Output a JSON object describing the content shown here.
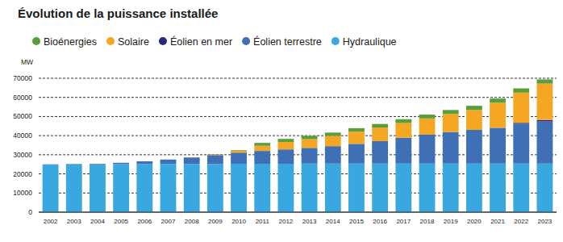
{
  "chart_data": {
    "type": "bar",
    "title": "Évolution de la puissance installée",
    "y_label": "MW",
    "stacked": true,
    "grid": true,
    "legend": "top-left",
    "categories": [
      "2002",
      "2003",
      "2004",
      "2005",
      "2006",
      "2007",
      "2008",
      "2009",
      "2010",
      "2011",
      "2012",
      "2013",
      "2014",
      "2015",
      "2016",
      "2017",
      "2018",
      "2019",
      "2020",
      "2021",
      "2022",
      "2023"
    ],
    "series": [
      {
        "name": "Hydraulique",
        "color": "#3aa8e0",
        "values": [
          24900,
          25000,
          25000,
          25100,
          25100,
          25200,
          25200,
          25200,
          25300,
          25300,
          25300,
          25400,
          25400,
          25400,
          25400,
          25400,
          25400,
          25400,
          25400,
          25400,
          25400,
          25400
        ]
      },
      {
        "name": "Éolien terrestre",
        "color": "#3f6fb5",
        "values": [
          100,
          200,
          300,
          700,
          1500,
          2300,
          3400,
          4600,
          5800,
          6700,
          7500,
          8200,
          9100,
          10300,
          11700,
          13500,
          15100,
          16500,
          17600,
          18700,
          20800,
          22000
        ]
      },
      {
        "name": "Éolien en mer",
        "color": "#2b2a7a",
        "values": [
          0,
          0,
          0,
          0,
          0,
          0,
          0,
          0,
          0,
          0,
          0,
          0,
          0,
          0,
          0,
          0,
          0,
          0,
          0,
          0,
          500,
          800
        ]
      },
      {
        "name": "Solaire",
        "color": "#f5a623",
        "values": [
          0,
          0,
          0,
          0,
          0,
          0,
          80,
          270,
          1000,
          2700,
          3900,
          4600,
          5400,
          6400,
          7100,
          7700,
          8500,
          9400,
          10400,
          13100,
          15800,
          19000
        ]
      },
      {
        "name": "Bioénergies",
        "color": "#5a9e3a",
        "values": [
          0,
          0,
          0,
          0,
          0,
          0,
          0,
          200,
          300,
          1500,
          1600,
          1700,
          1700,
          1800,
          1900,
          2000,
          2000,
          2100,
          2200,
          2200,
          2200,
          2200
        ]
      }
    ],
    "ylim": [
      0,
      70000
    ],
    "yticks": [
      0,
      10000,
      20000,
      30000,
      40000,
      50000,
      60000,
      70000
    ]
  }
}
